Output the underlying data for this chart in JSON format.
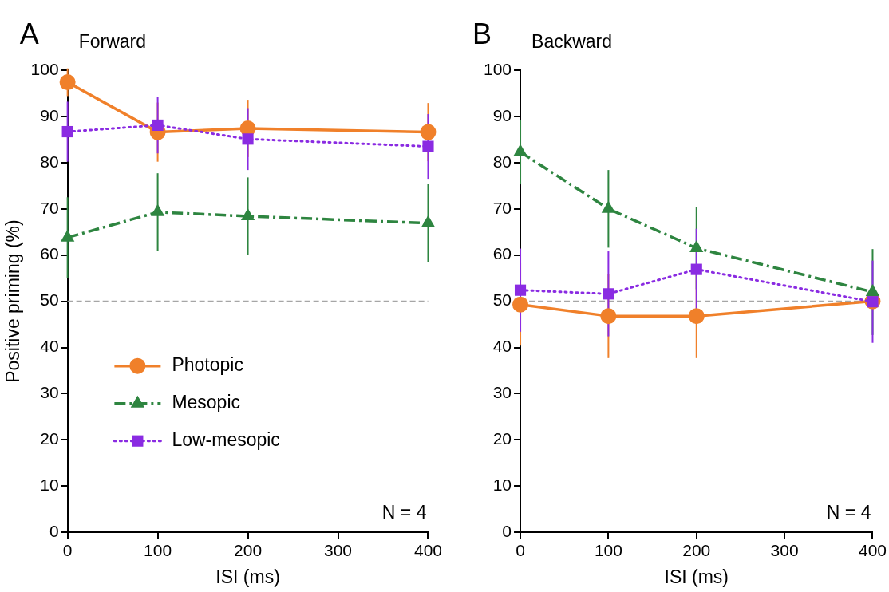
{
  "chart_data": [
    {
      "type": "line",
      "title": "Forward",
      "xlabel": "ISI (ms)",
      "ylabel": "Positive priming (%)",
      "annotations": [
        "A",
        "N = 4"
      ],
      "x": [
        0,
        100,
        200,
        400
      ],
      "xlim": [
        0,
        400
      ],
      "xticks": [
        0,
        100,
        200,
        300,
        400
      ],
      "ylim": [
        0,
        100
      ],
      "yticks": [
        0,
        10,
        20,
        30,
        40,
        50,
        60,
        70,
        80,
        90,
        100
      ],
      "legend": "left",
      "grid": false,
      "ref_lines": [
        {
          "axis": "y",
          "value": 50,
          "color": "#a6a6a6",
          "line_style": "dashed"
        }
      ],
      "series": [
        {
          "name": "Photopic",
          "color": "#f0802a",
          "marker": "circle",
          "line_style": "solid",
          "values": [
            97.4,
            86.6,
            87.4,
            86.6
          ],
          "errors": [
            3,
            6.4,
            6.2,
            6.3
          ]
        },
        {
          "name": "Mesopic",
          "color": "#2e8540",
          "marker": "triangle",
          "line_style": "dashed",
          "values": [
            63.8,
            69.3,
            68.4,
            66.9
          ],
          "errors": [
            8.7,
            8.4,
            8.4,
            8.5
          ]
        },
        {
          "name": "Low-mesopic",
          "color": "#8a2be2",
          "marker": "square",
          "line_style": "dotted",
          "values": [
            86.7,
            88.1,
            85.1,
            83.5
          ],
          "errors": [
            6.5,
            6.1,
            6.7,
            7
          ]
        }
      ]
    },
    {
      "type": "line",
      "title": "Backward",
      "xlabel": "ISI (ms)",
      "annotations": [
        "B",
        "N = 4"
      ],
      "x": [
        0,
        100,
        200,
        400
      ],
      "xlim": [
        0,
        400
      ],
      "xticks": [
        0,
        100,
        200,
        300,
        400
      ],
      "ylim": [
        0,
        100
      ],
      "yticks": [
        0,
        10,
        20,
        30,
        40,
        50,
        60,
        70,
        80,
        90,
        100
      ],
      "grid": false,
      "ref_lines": [
        {
          "axis": "y",
          "value": 50,
          "color": "#a6a6a6",
          "line_style": "dashed"
        }
      ],
      "series": [
        {
          "color": "#f0802a",
          "marker": "circle",
          "line_style": "solid",
          "values": [
            49.3,
            46.8,
            46.8,
            50.0
          ],
          "errors": [
            8.9,
            9.1,
            9.1,
            null
          ]
        },
        {
          "color": "#2e8540",
          "marker": "triangle",
          "line_style": "dashed",
          "values": [
            82.3,
            70.0,
            61.5,
            52.0
          ],
          "errors": [
            7,
            8.4,
            8.9,
            9.3
          ]
        },
        {
          "color": "#8a2be2",
          "marker": "square",
          "line_style": "dotted",
          "values": [
            52.4,
            51.6,
            56.9,
            49.9
          ],
          "errors": [
            9,
            9.2,
            8.8,
            8.9
          ]
        }
      ]
    }
  ]
}
